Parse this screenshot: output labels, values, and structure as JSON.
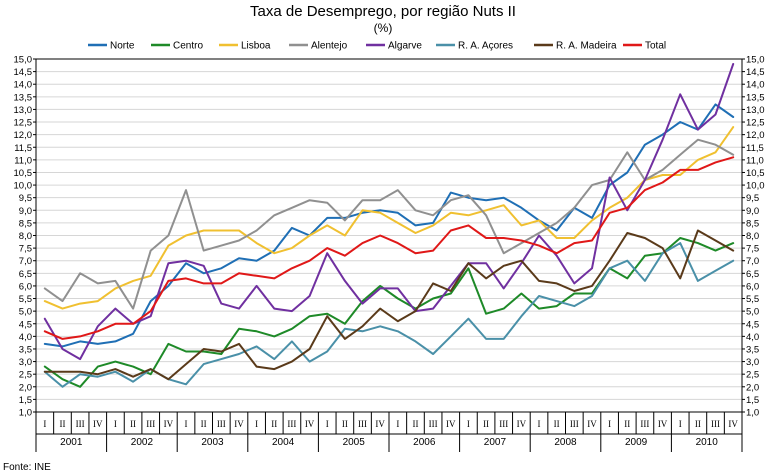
{
  "chart_data": {
    "type": "line",
    "title": "Taxa de Desemprego, por região Nuts II",
    "subtitle": "(%)",
    "source": "Fonte: INE",
    "ylim": [
      1.0,
      15.0
    ],
    "ystep": 0.5,
    "grid": true,
    "legend_position": "top",
    "quarters": [
      "I",
      "II",
      "III",
      "IV"
    ],
    "years": [
      "2001",
      "2002",
      "2003",
      "2004",
      "2005",
      "2006",
      "2007",
      "2008",
      "2009",
      "2010"
    ],
    "series": [
      {
        "name": "Norte",
        "color": "#1f6fb5",
        "values": [
          3.7,
          3.6,
          3.8,
          3.7,
          3.8,
          4.1,
          5.4,
          6.0,
          6.9,
          6.5,
          6.7,
          7.1,
          7.0,
          7.4,
          8.3,
          8.0,
          8.7,
          8.7,
          8.9,
          9.0,
          8.9,
          8.4,
          8.5,
          9.7,
          9.5,
          9.4,
          9.5,
          9.1,
          8.6,
          8.2,
          9.1,
          8.7,
          10.0,
          10.5,
          11.6,
          12.0,
          12.5,
          12.2,
          13.2,
          12.7
        ]
      },
      {
        "name": "Centro",
        "color": "#1e8a28",
        "values": [
          2.8,
          2.3,
          2.0,
          2.8,
          3.0,
          2.8,
          2.5,
          3.7,
          3.4,
          3.4,
          3.3,
          4.3,
          4.2,
          4.0,
          4.3,
          4.8,
          4.9,
          4.5,
          5.4,
          6.0,
          5.5,
          5.1,
          5.5,
          5.7,
          6.7,
          4.9,
          5.1,
          5.7,
          5.1,
          5.2,
          5.7,
          5.7,
          6.7,
          6.3,
          7.2,
          7.3,
          7.9,
          7.7,
          7.4,
          7.7
        ]
      },
      {
        "name": "Lisboa",
        "color": "#f0c030",
        "values": [
          5.4,
          5.1,
          5.3,
          5.4,
          5.9,
          6.2,
          6.4,
          7.6,
          8.0,
          8.2,
          8.2,
          8.2,
          7.7,
          7.3,
          7.5,
          8.0,
          8.4,
          8.0,
          9.0,
          8.9,
          8.5,
          8.1,
          8.4,
          8.9,
          8.8,
          9.0,
          9.2,
          8.4,
          8.6,
          7.9,
          7.9,
          8.6,
          9.1,
          9.5,
          10.2,
          10.4,
          10.4,
          11.0,
          11.3,
          12.3
        ]
      },
      {
        "name": "Alentejo",
        "color": "#909090",
        "values": [
          5.9,
          5.4,
          6.5,
          6.1,
          6.2,
          5.1,
          7.4,
          8.0,
          9.8,
          7.4,
          7.6,
          7.8,
          8.2,
          8.8,
          9.1,
          9.4,
          9.3,
          8.6,
          9.4,
          9.4,
          9.8,
          9.0,
          8.8,
          9.4,
          9.6,
          8.8,
          7.3,
          7.7,
          8.1,
          8.5,
          9.1,
          10.0,
          10.2,
          11.3,
          10.2,
          10.6,
          11.2,
          11.8,
          11.6,
          11.2
        ]
      },
      {
        "name": "Algarve",
        "color": "#7030a0",
        "values": [
          4.7,
          3.5,
          3.1,
          4.4,
          5.1,
          4.5,
          4.8,
          6.9,
          7.0,
          6.8,
          5.3,
          5.1,
          6.0,
          5.1,
          5.0,
          5.6,
          7.3,
          6.2,
          5.3,
          5.9,
          5.9,
          5.0,
          5.1,
          6.0,
          6.9,
          6.9,
          5.9,
          6.9,
          8.0,
          7.2,
          6.1,
          6.7,
          10.3,
          9.0,
          10.2,
          11.8,
          13.6,
          12.2,
          12.8,
          14.8
        ]
      },
      {
        "name": "R. A. Açores",
        "color": "#4a90a8",
        "values": [
          2.6,
          2.0,
          2.5,
          2.4,
          2.6,
          2.2,
          2.7,
          2.3,
          2.1,
          2.9,
          3.1,
          3.3,
          3.6,
          3.1,
          3.8,
          3.0,
          3.4,
          4.3,
          4.2,
          4.4,
          4.2,
          3.8,
          3.3,
          4.0,
          4.7,
          3.9,
          3.9,
          4.8,
          5.6,
          5.4,
          5.2,
          5.6,
          6.7,
          7.0,
          6.2,
          7.3,
          7.7,
          6.2,
          6.6,
          7.0
        ]
      },
      {
        "name": "R. A. Madeira",
        "color": "#5a3a1a",
        "values": [
          2.6,
          2.6,
          2.6,
          2.5,
          2.7,
          2.4,
          2.7,
          2.3,
          2.9,
          3.5,
          3.4,
          3.7,
          2.8,
          2.7,
          3.0,
          3.5,
          4.8,
          3.9,
          4.4,
          5.1,
          4.6,
          5.0,
          6.1,
          5.8,
          6.9,
          6.3,
          6.8,
          7.0,
          6.2,
          6.1,
          5.8,
          6.0,
          7.0,
          8.1,
          7.9,
          7.5,
          6.3,
          8.2,
          7.8,
          7.4
        ]
      },
      {
        "name": "Total",
        "color": "#e01818",
        "values": [
          4.2,
          3.9,
          4.0,
          4.2,
          4.5,
          4.5,
          5.0,
          6.2,
          6.3,
          6.1,
          6.1,
          6.5,
          6.4,
          6.3,
          6.7,
          7.0,
          7.5,
          7.2,
          7.7,
          8.0,
          7.7,
          7.3,
          7.4,
          8.2,
          8.4,
          7.9,
          7.9,
          7.8,
          7.6,
          7.3,
          7.7,
          7.8,
          8.9,
          9.1,
          9.8,
          10.1,
          10.6,
          10.6,
          10.9,
          11.1
        ]
      }
    ]
  }
}
